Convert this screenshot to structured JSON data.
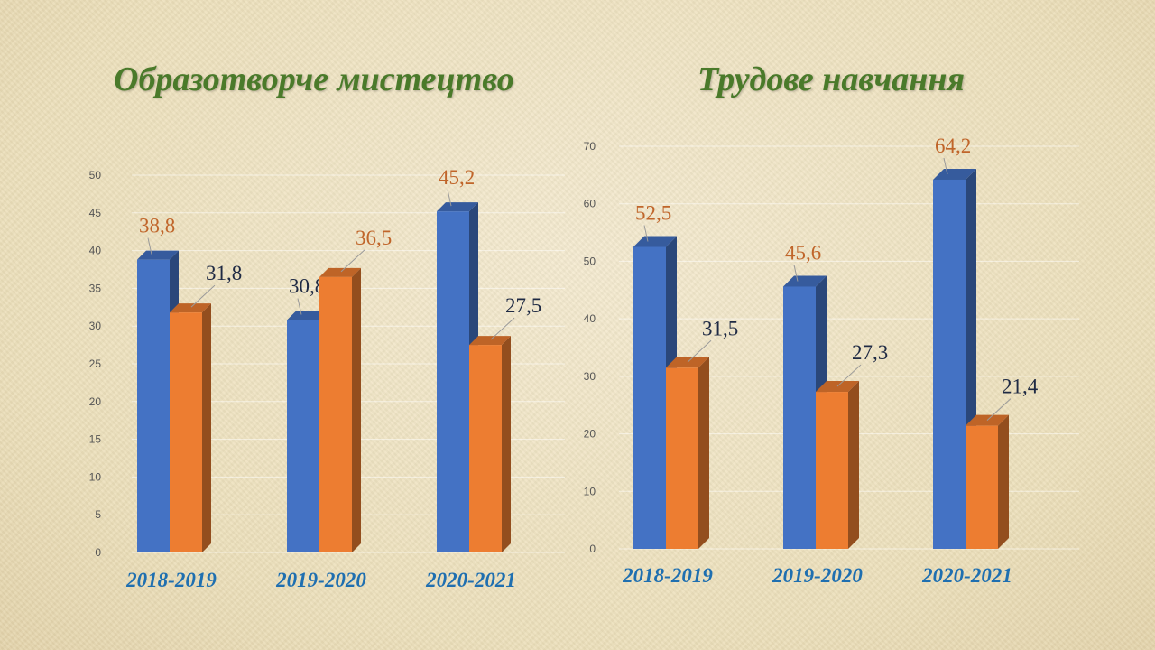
{
  "colors": {
    "series_a": "#4472c4",
    "series_b": "#ed7d31",
    "title": "#4a7a2a",
    "category": "#1f6fb0",
    "label_a_dark": "#1f2a44",
    "label_orange": "#c0652a"
  },
  "decor": {
    "left_border": "ukrainian-floral-ornament",
    "right_border": "ukrainian-floral-ornament"
  },
  "chart_data": [
    {
      "type": "bar",
      "title": "Образотворче мистецтво",
      "categories": [
        "2018-2019",
        "2019-2020",
        "2020-2021"
      ],
      "series": [
        {
          "values": [
            38.8,
            30.8,
            45.2
          ]
        },
        {
          "values": [
            31.8,
            36.5,
            27.5
          ]
        }
      ],
      "data_labels": [
        [
          "38,8",
          "30,8",
          "45,2"
        ],
        [
          "31,8",
          "36,5",
          "27,5"
        ]
      ],
      "ylim": [
        0,
        50
      ],
      "yticks": [
        "0",
        "5",
        "10",
        "15",
        "20",
        "25",
        "30",
        "35",
        "40",
        "45",
        "50"
      ],
      "grid": true,
      "legend": "none",
      "xlabel": "",
      "ylabel": ""
    },
    {
      "type": "bar",
      "title": "Трудове навчання",
      "categories": [
        "2018-2019",
        "2019-2020",
        "2020-2021"
      ],
      "series": [
        {
          "values": [
            52.5,
            45.6,
            64.2
          ]
        },
        {
          "values": [
            31.5,
            27.3,
            21.4
          ]
        }
      ],
      "data_labels": [
        [
          "52,5",
          "45,6",
          "64,2"
        ],
        [
          "31,5",
          "27,3",
          "21,4"
        ]
      ],
      "ylim": [
        0,
        70
      ],
      "yticks": [
        "0",
        "10",
        "20",
        "30",
        "40",
        "50",
        "60",
        "70"
      ],
      "grid": true,
      "legend": "none",
      "xlabel": "",
      "ylabel": ""
    }
  ]
}
